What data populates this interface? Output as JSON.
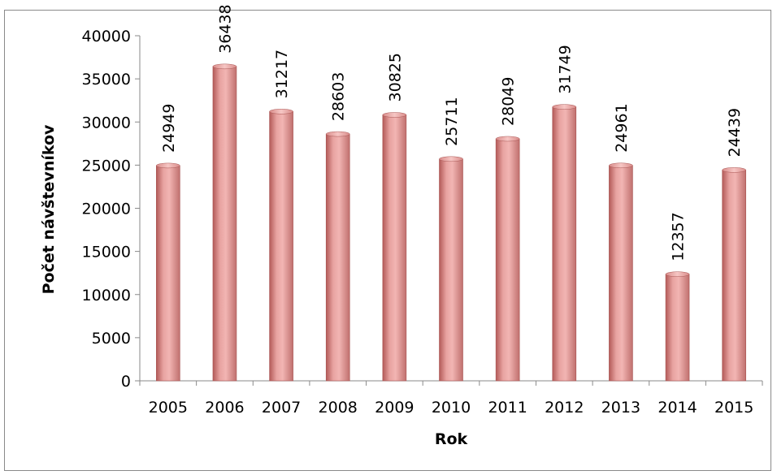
{
  "chart_data": {
    "type": "bar",
    "categories": [
      "2005",
      "2006",
      "2007",
      "2008",
      "2009",
      "2010",
      "2011",
      "2012",
      "2013",
      "2014",
      "2015"
    ],
    "values": [
      24949,
      36438,
      31217,
      28603,
      30825,
      25711,
      28049,
      31749,
      24961,
      12357,
      24439
    ],
    "data_labels": [
      "24949",
      "36438",
      "31217",
      "28603",
      "30825",
      "25711",
      "28049",
      "31749",
      "24961",
      "12357",
      "24439"
    ],
    "title": "",
    "xlabel": "Rok",
    "ylabel": "Počet návštevníkov",
    "ylim": [
      0,
      40000
    ],
    "yticks": [
      "0",
      "5000",
      "10000",
      "15000",
      "20000",
      "25000",
      "30000",
      "35000",
      "40000"
    ],
    "ytick_values": [
      0,
      5000,
      10000,
      15000,
      20000,
      25000,
      30000,
      35000,
      40000
    ],
    "grid": false,
    "legend": "none",
    "colors": {
      "bar_light": "#f2b3b1",
      "bar_mid": "#dc8a88",
      "bar_dark": "#b35a58",
      "bar_top": "#e9a3a1",
      "axis": "#8a8a8a",
      "frame": "#8a8a8a"
    }
  }
}
